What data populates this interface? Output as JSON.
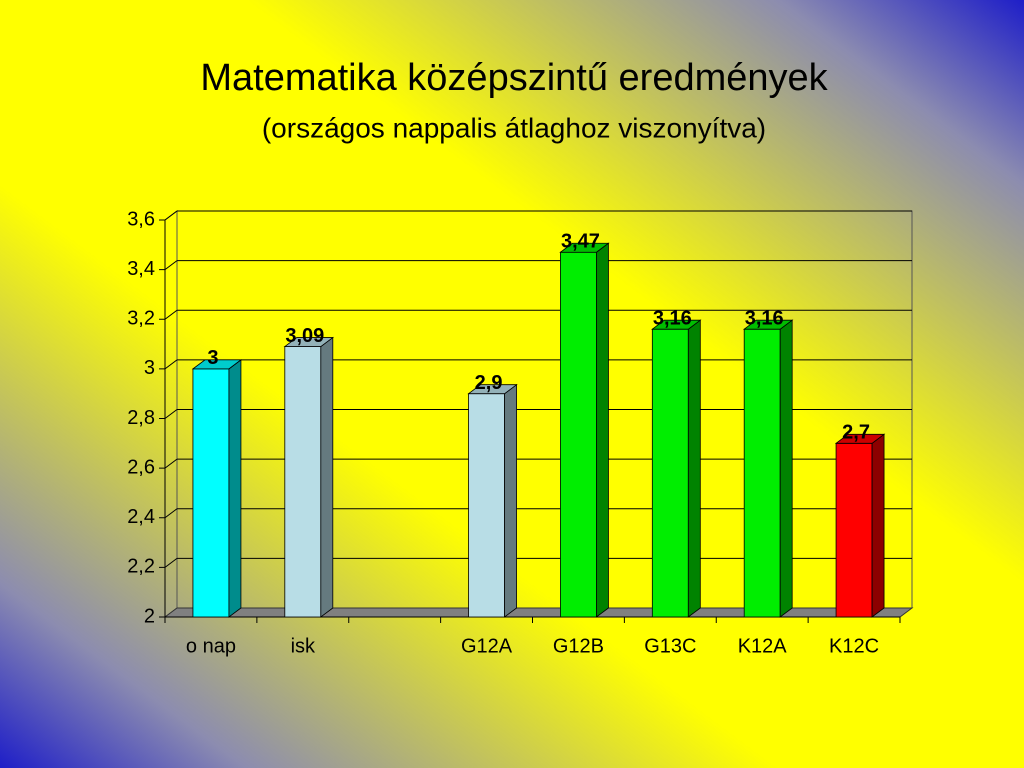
{
  "chart_data": {
    "type": "bar3d",
    "title": "Matematika középszintű eredmények",
    "subtitle": "(országos nappalis átlaghoz viszonyítva)",
    "categories": [
      "o nap",
      "isk",
      null,
      "G12A",
      "G12B",
      "G13C",
      "K12A",
      "K12C"
    ],
    "values": [
      3,
      3.09,
      null,
      2.9,
      3.47,
      3.16,
      3.16,
      2.7
    ],
    "value_labels": [
      "3",
      "3,09",
      null,
      "2,9",
      "3,47",
      "3,16",
      "3,16",
      "2,7"
    ],
    "colors": [
      "#00ffff",
      "#b8dde6",
      null,
      "#b8dde6",
      "#00ee00",
      "#00ee00",
      "#00ee00",
      "#ff0000"
    ],
    "ylim": [
      2,
      3.6
    ],
    "yticks": [
      2,
      {
        "value": 2.2,
        "label": "2,2"
      },
      {
        "value": 2.4,
        "label": "2,4"
      },
      {
        "value": 2.6,
        "label": "2,6"
      },
      {
        "value": 2.8,
        "label": "2,8"
      },
      3,
      {
        "value": 3.2,
        "label": "3,2"
      },
      {
        "value": 3.4,
        "label": "3,4"
      },
      {
        "value": 3.6,
        "label": "3,6"
      }
    ],
    "grid": true
  }
}
